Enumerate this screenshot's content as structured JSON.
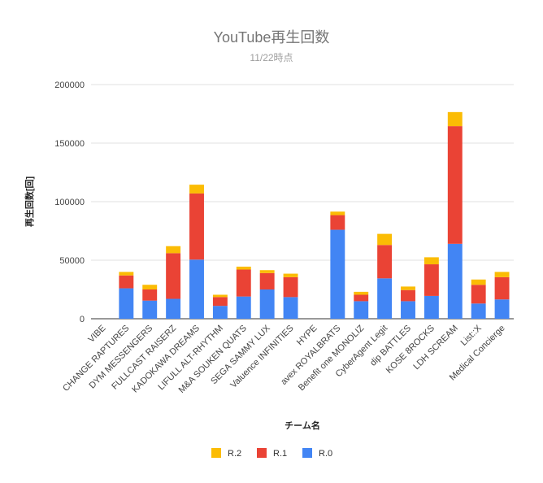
{
  "chart_data": {
    "type": "bar",
    "stacked": true,
    "title": "YouTube再生回数",
    "subtitle": "11/22時点",
    "xlabel": "チーム名",
    "ylabel": "再生回数[回]",
    "ylim": [
      0,
      200000
    ],
    "yticks": [
      0,
      50000,
      100000,
      150000,
      200000
    ],
    "grid": true,
    "legend_position": "bottom",
    "categories": [
      "VIBE",
      "CHANGE RAPTURES",
      "DYM MESSENGERS",
      "FULLCAST RAISERZ",
      "KADOKAWA DREAMS",
      "LIFULL ALT-RHYTHM",
      "M&A SOUKEN QUATS",
      "SEGA SAMMY LUX",
      "Valuence INFINITIES",
      "HYPE",
      "avex ROYALBRATS",
      "Benefit one MONOLIZ",
      "CyberAgent Legit",
      "dip BATTLES",
      "KOSE 8ROCKS",
      "LDH SCREAM",
      "List::X",
      "Medical Concierge"
    ],
    "series": [
      {
        "name": "R.0",
        "color": "#4285f4",
        "values": [
          0,
          26000,
          15500,
          17000,
          50500,
          11000,
          19000,
          25000,
          18500,
          0,
          76000,
          15000,
          34500,
          15000,
          19500,
          64000,
          13000,
          16500
        ]
      },
      {
        "name": "R.1",
        "color": "#ea4335",
        "values": [
          0,
          11000,
          9500,
          39000,
          56500,
          7500,
          23000,
          14000,
          17000,
          0,
          12500,
          5500,
          28500,
          9500,
          27000,
          100500,
          16000,
          19000
        ]
      },
      {
        "name": "R.2",
        "color": "#fbbc04",
        "values": [
          0,
          3000,
          4000,
          6000,
          7500,
          2000,
          2500,
          2500,
          3000,
          0,
          3000,
          2500,
          9500,
          3000,
          6000,
          12000,
          4500,
          4500
        ]
      }
    ]
  }
}
